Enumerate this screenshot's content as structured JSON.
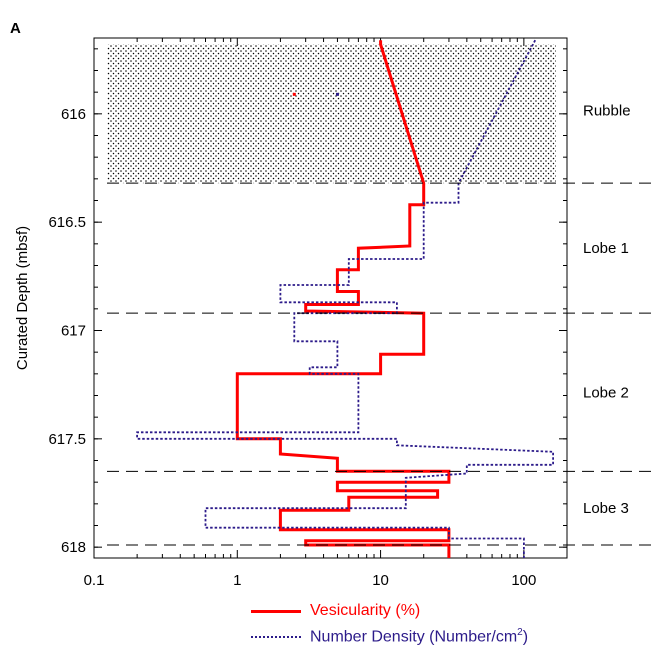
{
  "panel_label": "A",
  "legend": {
    "vesicularity": "Vesicularity (%)",
    "density_prefix": "Number Density (Number/cm",
    "density_sup": "2",
    "density_suffix": ")"
  },
  "colors": {
    "vesicularity": "#ff0000",
    "density": "#2c1b8a",
    "divider": "#000000"
  },
  "chart_data": {
    "type": "line",
    "xscale": "log",
    "xlim": [
      0.1,
      200
    ],
    "ylim": [
      618.05,
      615.65
    ],
    "ylabel": "Curated Depth (mbsf)",
    "xlabel": "",
    "xticks": [
      {
        "value": 0.1,
        "label": "0.1"
      },
      {
        "value": 1,
        "label": "1"
      },
      {
        "value": 10,
        "label": "10"
      },
      {
        "value": 100,
        "label": "100"
      }
    ],
    "yticks": [
      {
        "value": 616,
        "label": "616"
      },
      {
        "value": 616.5,
        "label": "616.5"
      },
      {
        "value": 617,
        "label": "617"
      },
      {
        "value": 617.5,
        "label": "617.5"
      },
      {
        "value": 618,
        "label": "618"
      }
    ],
    "units": [
      {
        "name": "Rubble",
        "top": 615.65,
        "bottom": 616.32
      },
      {
        "name": "Lobe 1",
        "top": 616.32,
        "bottom": 616.92
      },
      {
        "name": "Lobe 2",
        "top": 616.92,
        "bottom": 617.65
      },
      {
        "name": "Lobe 3",
        "top": 617.65,
        "bottom": 617.99
      }
    ],
    "divider_depths": [
      616.32,
      616.92,
      617.65,
      617.99
    ],
    "series": [
      {
        "name": "Vesicularity (%)",
        "style": "solid",
        "points": [
          [
            10,
            615.66
          ],
          [
            10,
            615.68
          ],
          [
            20,
            616.32
          ],
          [
            20,
            616.42
          ],
          [
            16,
            616.42
          ],
          [
            16,
            616.61
          ],
          [
            7,
            616.62
          ],
          [
            7,
            616.72
          ],
          [
            5,
            616.72
          ],
          [
            5,
            616.82
          ],
          [
            7,
            616.82
          ],
          [
            7,
            616.88
          ],
          [
            3,
            616.88
          ],
          [
            3,
            616.91
          ],
          [
            20,
            616.92
          ],
          [
            20,
            617.11
          ],
          [
            10,
            617.11
          ],
          [
            10,
            617.2
          ],
          [
            1,
            617.2
          ],
          [
            1,
            617.5
          ],
          [
            2,
            617.5
          ],
          [
            2,
            617.57
          ],
          [
            5,
            617.59
          ],
          [
            5,
            617.65
          ],
          [
            30,
            617.65
          ],
          [
            30,
            617.7
          ],
          [
            5,
            617.7
          ],
          [
            5,
            617.74
          ],
          [
            25,
            617.74
          ],
          [
            25,
            617.77
          ],
          [
            6,
            617.77
          ],
          [
            6,
            617.83
          ],
          [
            2,
            617.83
          ],
          [
            2,
            617.92
          ],
          [
            30,
            617.92
          ],
          [
            30,
            617.97
          ],
          [
            3,
            617.97
          ],
          [
            3,
            617.99
          ],
          [
            30,
            617.99
          ],
          [
            30,
            618.05
          ]
        ]
      },
      {
        "name": "Number Density (Number/cm2)",
        "style": "dotted",
        "points": [
          [
            120,
            615.66
          ],
          [
            35,
            616.32
          ],
          [
            35,
            616.41
          ],
          [
            20,
            616.41
          ],
          [
            20,
            616.67
          ],
          [
            6,
            616.67
          ],
          [
            6,
            616.79
          ],
          [
            2,
            616.79
          ],
          [
            2,
            616.87
          ],
          [
            13,
            616.87
          ],
          [
            13,
            616.92
          ],
          [
            2.5,
            616.92
          ],
          [
            2.5,
            617.05
          ],
          [
            5,
            617.05
          ],
          [
            5,
            617.17
          ],
          [
            3.2,
            617.17
          ],
          [
            3.2,
            617.2
          ],
          [
            7,
            617.2
          ],
          [
            7,
            617.47
          ],
          [
            0.2,
            617.47
          ],
          [
            0.2,
            617.5
          ],
          [
            13,
            617.5
          ],
          [
            13,
            617.53
          ],
          [
            160,
            617.56
          ],
          [
            160,
            617.62
          ],
          [
            40,
            617.62
          ],
          [
            40,
            617.66
          ],
          [
            15,
            617.68
          ],
          [
            15,
            617.82
          ],
          [
            0.6,
            617.82
          ],
          [
            0.6,
            617.91
          ],
          [
            30,
            617.91
          ],
          [
            30,
            617.96
          ],
          [
            100,
            617.96
          ],
          [
            100,
            618.05
          ]
        ]
      }
    ],
    "point_markers": [
      {
        "series": "Vesicularity (%)",
        "x": 2.5,
        "y": 615.91
      },
      {
        "series": "Number Density (Number/cm2)",
        "x": 5,
        "y": 615.91
      }
    ]
  }
}
